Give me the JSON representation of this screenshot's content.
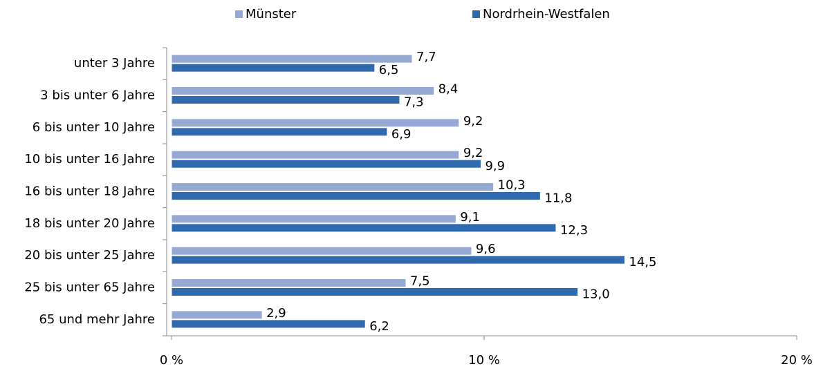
{
  "chart_data": {
    "type": "barh",
    "categories": [
      "unter 3 Jahre",
      "3 bis unter 6 Jahre",
      "6 bis unter 10 Jahre",
      "10 bis unter 16 Jahre",
      "16 bis unter 18 Jahre",
      "18 bis unter 20 Jahre",
      "20 bis unter 25 Jahre",
      "25 bis unter 65 Jahre",
      "65 und mehr Jahre"
    ],
    "series": [
      {
        "name": "Münster",
        "color": "#95a9d4",
        "values": [
          7.7,
          8.4,
          9.2,
          9.2,
          10.3,
          9.1,
          9.6,
          7.5,
          2.9
        ],
        "value_labels": [
          "7,7",
          "8,4",
          "9,2",
          "9,2",
          "10,3",
          "9,1",
          "9,6",
          "7,5",
          "2,9"
        ]
      },
      {
        "name": "Nordrhein-Westfalen",
        "color": "#2e6aad",
        "values": [
          6.5,
          7.3,
          6.9,
          9.9,
          11.8,
          12.3,
          14.5,
          13.0,
          6.2
        ],
        "value_labels": [
          "6,5",
          "7,3",
          "6,9",
          "9,9",
          "11,8",
          "12,3",
          "14,5",
          "13,0",
          "6,2"
        ]
      }
    ],
    "xlim": [
      0,
      20
    ],
    "xticks": [
      {
        "value": 0,
        "label": "0 %"
      },
      {
        "value": 10,
        "label": "10 %"
      },
      {
        "value": 20,
        "label": "20 %"
      }
    ],
    "legend": "top"
  }
}
